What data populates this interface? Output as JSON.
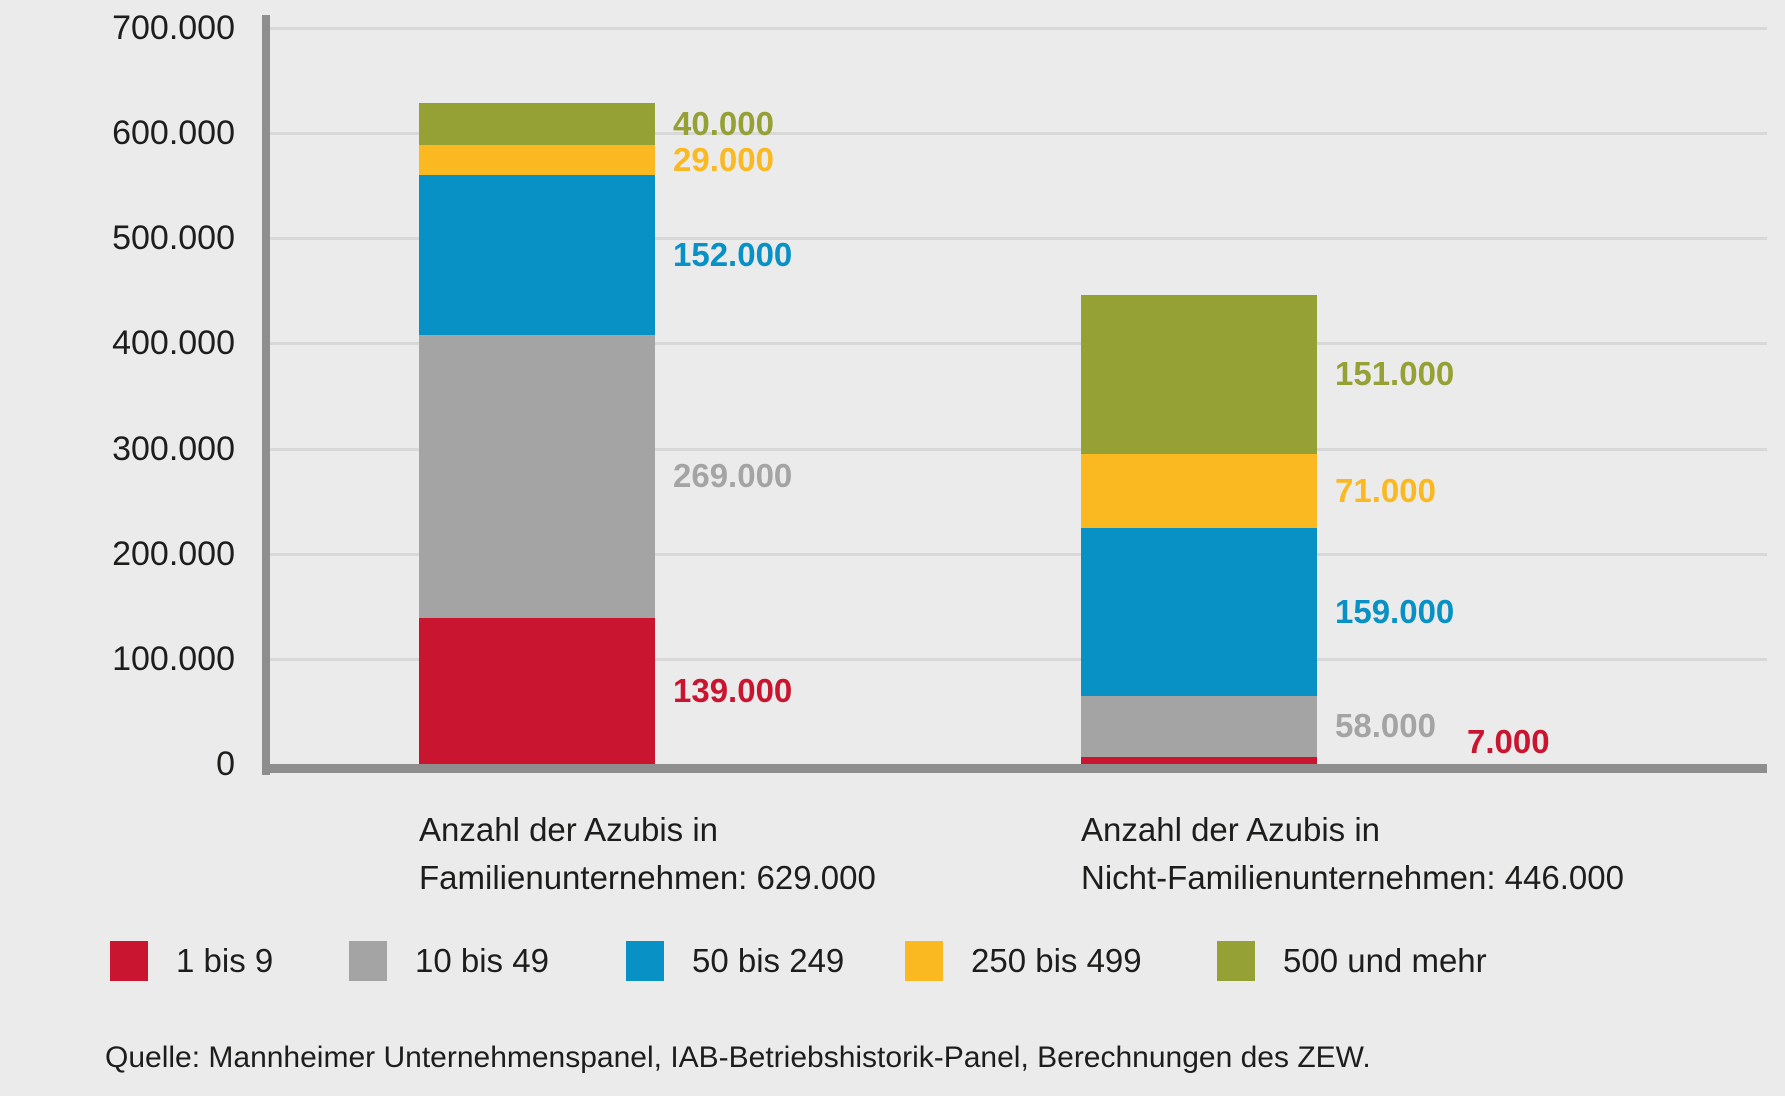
{
  "chart_data": {
    "type": "bar",
    "variant": "stacked-column",
    "title": "",
    "grid": true,
    "legend_position": "bottom",
    "y_axis": {
      "min": 0,
      "max": 700000,
      "tick_step": 100000,
      "tick_labels": [
        "0",
        "100.000",
        "200.000",
        "300.000",
        "400.000",
        "500.000",
        "600.000",
        "700.000"
      ]
    },
    "categories": [
      {
        "name": "Familienunternehmen",
        "axis_label_line1": "Anzahl der Azubis in",
        "axis_label_line2": "Familienunternehmen: 629.000",
        "total": 629000,
        "total_label": "629.000"
      },
      {
        "name": "Nicht-Familienunternehmen",
        "axis_label_line1": "Anzahl der Azubis in",
        "axis_label_line2": "Nicht-Familienunternehmen: 446.000",
        "total": 446000,
        "total_label": "446.000"
      }
    ],
    "series": [
      {
        "name": "1 bis 9",
        "color": "#C9152F",
        "values": [
          139000,
          7000
        ],
        "value_labels": [
          "139.000",
          "7.000"
        ]
      },
      {
        "name": "10 bis 49",
        "color": "#A4A4A4",
        "values": [
          269000,
          58000
        ],
        "value_labels": [
          "269.000",
          "58.000"
        ]
      },
      {
        "name": "50 bis 249",
        "color": "#0791C5",
        "values": [
          152000,
          159000
        ],
        "value_labels": [
          "152.000",
          "159.000"
        ]
      },
      {
        "name": "250 bis 499",
        "color": "#FAB920",
        "values": [
          29000,
          71000
        ],
        "value_labels": [
          "29.000",
          "71.000"
        ]
      },
      {
        "name": "500 und mehr",
        "color": "#95A135",
        "values": [
          40000,
          151000
        ],
        "value_labels": [
          "40.000",
          "151.000"
        ]
      }
    ]
  },
  "source": {
    "text": "Quelle: Mannheimer Unternehmenspanel, IAB-Betriebshistorik-Panel, Berechnungen des ZEW."
  },
  "style": {
    "background": "#EBEBEB",
    "grid_color": "#D8D8D8",
    "axis_color": "#8E8E8E",
    "text_color": "#1D1D1B"
  }
}
